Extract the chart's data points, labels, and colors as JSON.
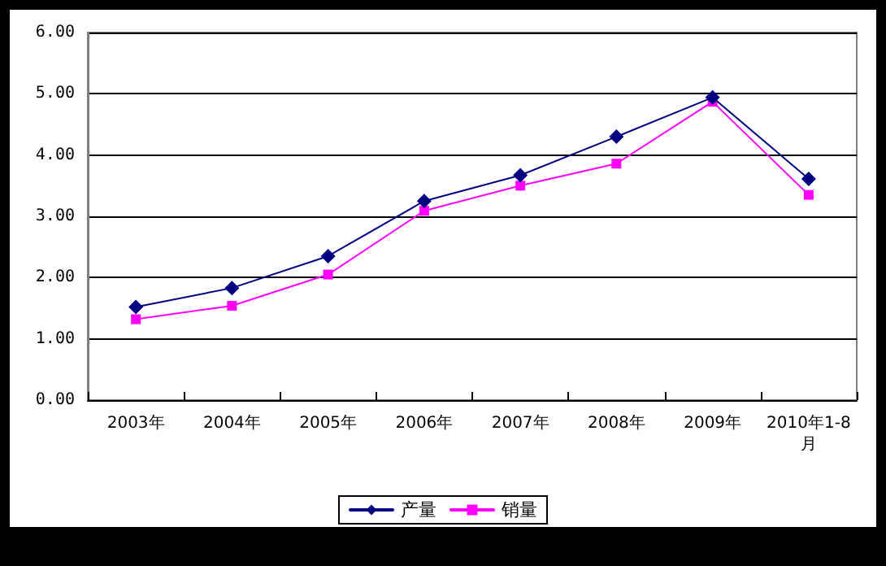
{
  "chart_data": {
    "type": "line",
    "categories": [
      "2003年",
      "2004年",
      "2005年",
      "2006年",
      "2007年",
      "2008年",
      "2009年",
      "2010年1-8月"
    ],
    "series": [
      {
        "name": "产量",
        "color": "#000080",
        "marker": "diamond",
        "values": [
          1.52,
          1.83,
          2.35,
          3.25,
          3.67,
          4.3,
          4.94,
          3.61
        ]
      },
      {
        "name": "销量",
        "color": "#ff00ff",
        "marker": "square",
        "values": [
          1.32,
          1.54,
          2.05,
          3.09,
          3.5,
          3.86,
          4.87,
          3.35
        ]
      }
    ],
    "ylim": [
      0,
      6
    ],
    "yticks": [
      {
        "value": 0,
        "label": "0.00"
      },
      {
        "value": 1,
        "label": "1.00"
      },
      {
        "value": 2,
        "label": "2.00"
      },
      {
        "value": 3,
        "label": "3.00"
      },
      {
        "value": 4,
        "label": "4.00"
      },
      {
        "value": 5,
        "label": "5.00"
      },
      {
        "value": 6,
        "label": "6.00"
      }
    ],
    "grid": "y",
    "legend": "bottom",
    "line_style": "solid"
  }
}
